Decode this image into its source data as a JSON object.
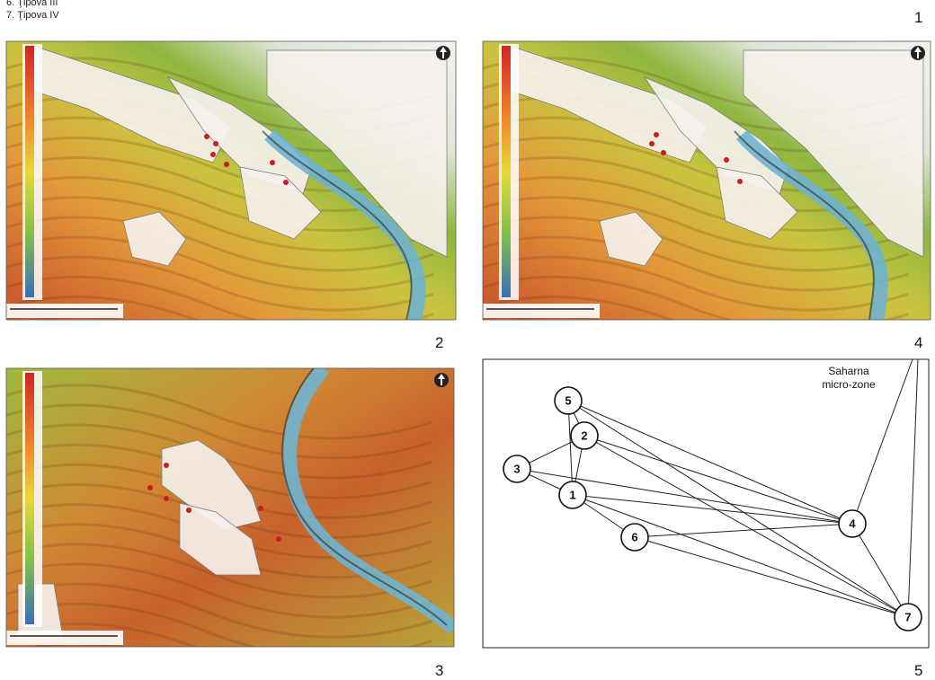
{
  "legend_items": [
    "6. Ţipova III",
    "7. Ţipova IV"
  ],
  "panel_numbers": {
    "top": "1",
    "map_left": "2",
    "map_right": "4",
    "map_bottom": "3",
    "diagram": "5"
  },
  "diagram": {
    "caption": [
      "Saharna",
      "micro-zone"
    ],
    "nodes": [
      {
        "label": "1"
      },
      {
        "label": "2"
      },
      {
        "label": "3"
      },
      {
        "label": "4"
      },
      {
        "label": "5"
      },
      {
        "label": "6"
      },
      {
        "label": "7"
      }
    ]
  }
}
